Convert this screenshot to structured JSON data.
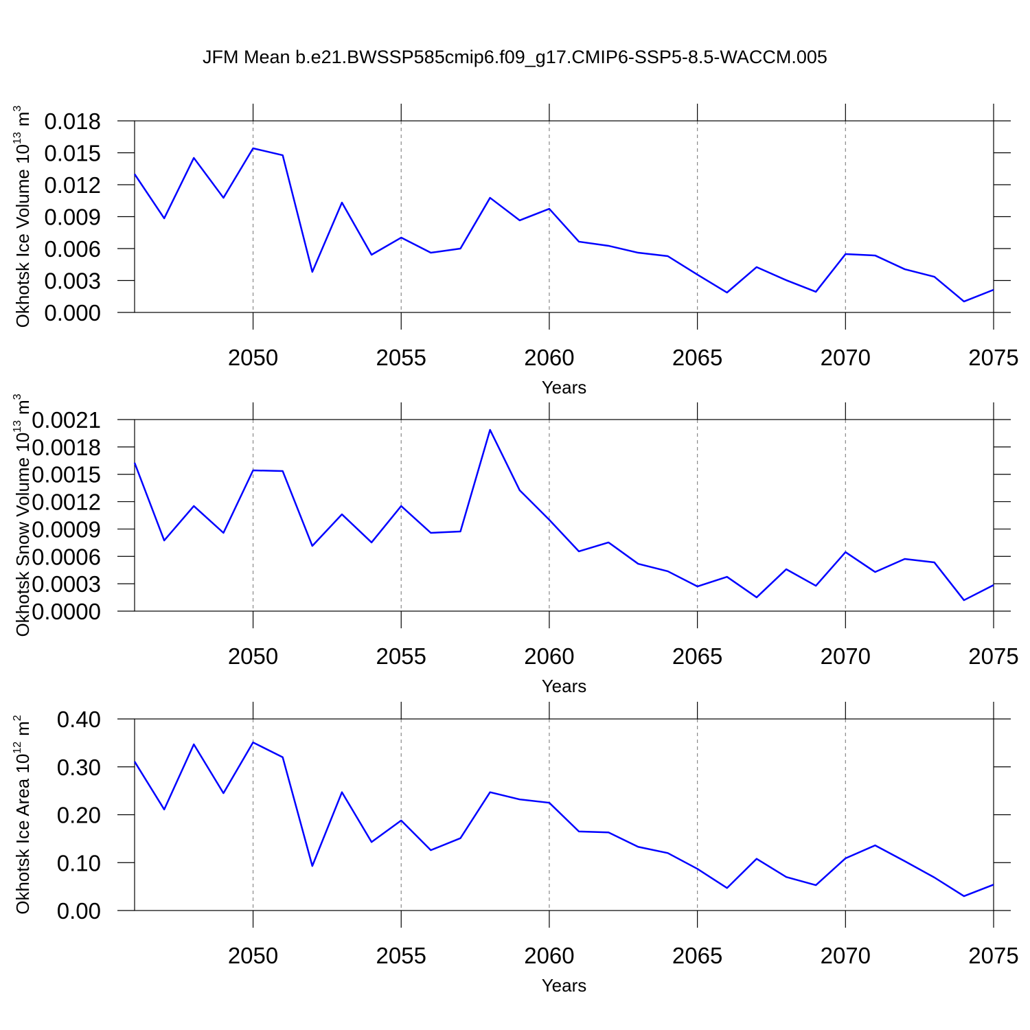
{
  "title": "JFM Mean b.e21.BWSSP585cmip6.f09_g17.CMIP6-SSP5-8.5-WACCM.005",
  "chart_data": [
    {
      "type": "line",
      "xlabel": "Years",
      "ylabel": {
        "text": "Okhotsk Ice Volume 10",
        "exponent": "13",
        "unit": "m",
        "unit_exponent": "3"
      },
      "color": "#0000ff",
      "grid": true,
      "x": [
        2046,
        2047,
        2048,
        2049,
        2050,
        2051,
        2052,
        2053,
        2054,
        2055,
        2056,
        2057,
        2058,
        2059,
        2060,
        2061,
        2062,
        2063,
        2064,
        2065,
        2066,
        2067,
        2068,
        2069,
        2070,
        2071,
        2072,
        2073,
        2074,
        2075
      ],
      "values": [
        0.013,
        0.00884,
        0.01452,
        0.01077,
        0.01542,
        0.01477,
        0.00381,
        0.01032,
        0.00542,
        0.00703,
        0.00561,
        0.006,
        0.01077,
        0.00865,
        0.00974,
        0.00665,
        0.00626,
        0.00561,
        0.00529,
        0.00355,
        0.00187,
        0.00426,
        0.00303,
        0.00194,
        0.00548,
        0.00535,
        0.00406,
        0.00335,
        0.00103,
        0.00213
      ],
      "xlim": [
        2046,
        2075
      ],
      "xticks": [
        2050,
        2055,
        2060,
        2065,
        2070,
        2075
      ],
      "ylim": [
        0,
        0.018
      ],
      "yticks": [
        {
          "value": 0,
          "label": "0.000"
        },
        {
          "value": 0.003,
          "label": "0.003"
        },
        {
          "value": 0.006,
          "label": "0.006"
        },
        {
          "value": 0.009,
          "label": "0.009"
        },
        {
          "value": 0.012,
          "label": "0.012"
        },
        {
          "value": 0.015,
          "label": "0.015"
        },
        {
          "value": 0.018,
          "label": "0.018"
        }
      ]
    },
    {
      "type": "line",
      "xlabel": "Years",
      "ylabel": {
        "text": "Okhotsk Snow Volume 10",
        "exponent": "13",
        "unit": "m",
        "unit_exponent": "3"
      },
      "color": "#0000ff",
      "grid": true,
      "x": [
        2046,
        2047,
        2048,
        2049,
        2050,
        2051,
        2052,
        2053,
        2054,
        2055,
        2056,
        2057,
        2058,
        2059,
        2060,
        2061,
        2062,
        2063,
        2064,
        2065,
        2066,
        2067,
        2068,
        2069,
        2070,
        2071,
        2072,
        2073,
        2074,
        2075
      ],
      "values": [
        0.001626,
        0.000775,
        0.001152,
        0.000858,
        0.001543,
        0.001535,
        0.000715,
        0.001061,
        0.000753,
        0.001152,
        0.000858,
        0.000873,
        0.001987,
        0.001325,
        0.001001,
        0.000655,
        0.000753,
        0.000519,
        0.000437,
        0.000271,
        0.000376,
        0.000151,
        0.000459,
        0.000278,
        0.000647,
        0.000429,
        0.000572,
        0.000534,
        0.00012,
        0.000286
      ],
      "xlim": [
        2046,
        2075
      ],
      "xticks": [
        2050,
        2055,
        2060,
        2065,
        2070,
        2075
      ],
      "ylim": [
        0,
        0.0021
      ],
      "yticks": [
        {
          "value": 0,
          "label": "0.0000"
        },
        {
          "value": 0.0003,
          "label": "0.0003"
        },
        {
          "value": 0.0006,
          "label": "0.0006"
        },
        {
          "value": 0.0009,
          "label": "0.0009"
        },
        {
          "value": 0.0012,
          "label": "0.0012"
        },
        {
          "value": 0.0015,
          "label": "0.0015"
        },
        {
          "value": 0.0018,
          "label": "0.0018"
        },
        {
          "value": 0.0021,
          "label": "0.0021"
        }
      ]
    },
    {
      "type": "line",
      "xlabel": "Years",
      "ylabel": {
        "text": "Okhotsk Ice Area 10",
        "exponent": "12",
        "unit": "m",
        "unit_exponent": "2"
      },
      "color": "#0000ff",
      "grid": true,
      "x": [
        2046,
        2047,
        2048,
        2049,
        2050,
        2051,
        2052,
        2053,
        2054,
        2055,
        2056,
        2057,
        2058,
        2059,
        2060,
        2061,
        2062,
        2063,
        2064,
        2065,
        2066,
        2067,
        2068,
        2069,
        2070,
        2071,
        2072,
        2073,
        2074,
        2075
      ],
      "values": [
        0.311,
        0.211,
        0.347,
        0.245,
        0.351,
        0.32,
        0.093,
        0.247,
        0.143,
        0.188,
        0.126,
        0.151,
        0.247,
        0.232,
        0.225,
        0.165,
        0.163,
        0.133,
        0.12,
        0.087,
        0.047,
        0.108,
        0.07,
        0.053,
        0.109,
        0.136,
        0.103,
        0.069,
        0.03,
        0.054
      ],
      "xlim": [
        2046,
        2075
      ],
      "xticks": [
        2050,
        2055,
        2060,
        2065,
        2070,
        2075
      ],
      "ylim": [
        0,
        0.4
      ],
      "yticks": [
        {
          "value": 0,
          "label": "0.00"
        },
        {
          "value": 0.1,
          "label": "0.10"
        },
        {
          "value": 0.2,
          "label": "0.20"
        },
        {
          "value": 0.3,
          "label": "0.30"
        },
        {
          "value": 0.4,
          "label": "0.40"
        }
      ]
    }
  ]
}
